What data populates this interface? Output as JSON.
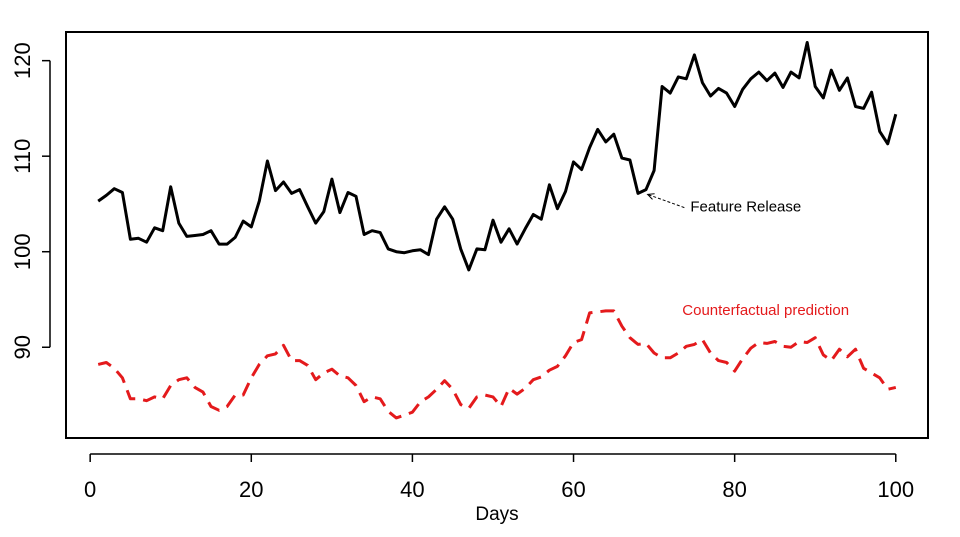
{
  "chart_data": {
    "type": "line",
    "title": "",
    "xlabel": "Days",
    "ylabel": "",
    "xlim": [
      -3,
      104
    ],
    "ylim": [
      80.5,
      123
    ],
    "grid": false,
    "x_ticks": [
      0,
      20,
      40,
      60,
      80,
      100
    ],
    "y_ticks": [
      90,
      100,
      110,
      120
    ],
    "series": [
      {
        "style": "solid",
        "color": "#000000",
        "x": [
          1,
          2,
          3,
          4,
          5,
          6,
          7,
          8,
          9,
          10,
          11,
          12,
          13,
          14,
          15,
          16,
          17,
          18,
          19,
          20,
          21,
          22,
          23,
          24,
          25,
          26,
          27,
          28,
          29,
          30,
          31,
          32,
          33,
          34,
          35,
          36,
          37,
          38,
          39,
          40,
          41,
          42,
          43,
          44,
          45,
          46,
          47,
          48,
          49,
          50,
          51,
          52,
          53,
          54,
          55,
          56,
          57,
          58,
          59,
          60,
          61,
          62,
          63,
          64,
          65,
          66,
          67,
          68,
          69,
          70,
          71,
          72,
          73,
          74,
          75,
          76,
          77,
          78,
          79,
          80,
          81,
          82,
          83,
          84,
          85,
          86,
          87,
          88,
          89,
          90,
          91,
          92,
          93,
          94,
          95,
          96,
          97,
          98,
          99,
          100
        ],
        "values": [
          105.3,
          105.9,
          106.6,
          106.2,
          101.3,
          101.4,
          101.0,
          102.5,
          102.2,
          106.8,
          103.0,
          101.6,
          101.7,
          101.8,
          102.2,
          100.8,
          100.8,
          101.5,
          103.2,
          102.6,
          105.3,
          109.5,
          106.4,
          107.3,
          106.1,
          106.5,
          104.7,
          103.0,
          104.2,
          107.6,
          104.1,
          106.2,
          105.8,
          101.8,
          102.2,
          102.0,
          100.3,
          100.0,
          99.9,
          100.1,
          100.2,
          99.7,
          103.4,
          104.7,
          103.4,
          100.3,
          98.1,
          100.3,
          100.2,
          103.3,
          101.0,
          102.4,
          100.8,
          102.4,
          103.9,
          103.4,
          107.0,
          104.5,
          106.3,
          109.4,
          108.6,
          110.9,
          112.8,
          111.5,
          112.3,
          109.8,
          109.6,
          106.1,
          106.5,
          108.5,
          117.3,
          116.6,
          118.3,
          118.1,
          120.6,
          117.7,
          116.3,
          117.1,
          116.6,
          115.2,
          117.0,
          118.1,
          118.8,
          117.9,
          118.7,
          117.2,
          118.8,
          118.2,
          121.9,
          117.3,
          116.1,
          119.0,
          116.9,
          118.2,
          115.2,
          115.0,
          116.7,
          112.6,
          111.3,
          114.4
        ]
      },
      {
        "style": "dashed",
        "color": "#e41a1c",
        "x": [
          1,
          2,
          3,
          4,
          5,
          6,
          7,
          8,
          9,
          10,
          11,
          12,
          13,
          14,
          15,
          16,
          17,
          18,
          19,
          20,
          21,
          22,
          23,
          24,
          25,
          26,
          27,
          28,
          29,
          30,
          31,
          32,
          33,
          34,
          35,
          36,
          37,
          38,
          39,
          40,
          41,
          42,
          43,
          44,
          45,
          46,
          47,
          48,
          49,
          50,
          51,
          52,
          53,
          54,
          55,
          56,
          57,
          58,
          59,
          60,
          61,
          62,
          63,
          64,
          65,
          66,
          67,
          68,
          69,
          70,
          71,
          72,
          73,
          74,
          75,
          76,
          77,
          78,
          79,
          80,
          81,
          82,
          83,
          84,
          85,
          86,
          87,
          88,
          89,
          90,
          91,
          92,
          93,
          94,
          95,
          96,
          97,
          98,
          99,
          100
        ],
        "values": [
          88.2,
          88.4,
          87.8,
          86.8,
          84.6,
          84.6,
          84.4,
          84.8,
          84.6,
          86.0,
          86.6,
          86.8,
          85.8,
          85.3,
          83.8,
          83.4,
          83.8,
          85.0,
          85.0,
          86.8,
          88.2,
          89.1,
          89.3,
          90.2,
          88.6,
          88.6,
          88.1,
          86.6,
          87.3,
          87.7,
          87.0,
          86.8,
          86.0,
          84.3,
          84.8,
          84.6,
          83.3,
          82.6,
          82.9,
          83.2,
          84.3,
          84.8,
          85.6,
          86.5,
          85.6,
          84.0,
          83.6,
          84.8,
          85.0,
          84.8,
          83.8,
          85.7,
          85.1,
          85.7,
          86.6,
          86.9,
          87.6,
          88.0,
          89.1,
          90.5,
          90.8,
          93.6,
          93.7,
          93.8,
          93.8,
          92.2,
          91.0,
          90.3,
          90.4,
          89.4,
          88.9,
          88.9,
          89.4,
          90.1,
          90.3,
          90.8,
          89.4,
          88.6,
          88.4,
          87.5,
          88.8,
          89.9,
          90.5,
          90.4,
          90.6,
          90.1,
          90.0,
          90.6,
          90.5,
          91.0,
          89.2,
          88.6,
          89.8,
          89.0,
          89.8,
          87.8,
          87.3,
          86.8,
          85.6,
          85.8
        ]
      }
    ],
    "annotations": {
      "feature": {
        "text": "Feature Release",
        "point_x": 69.2,
        "point_y": 106.0,
        "text_x": 74.5,
        "text_y": 104.2
      },
      "counterfactual": {
        "text": "Counterfactual prediction",
        "text_x": 73.5,
        "text_y": 93.4
      }
    }
  }
}
